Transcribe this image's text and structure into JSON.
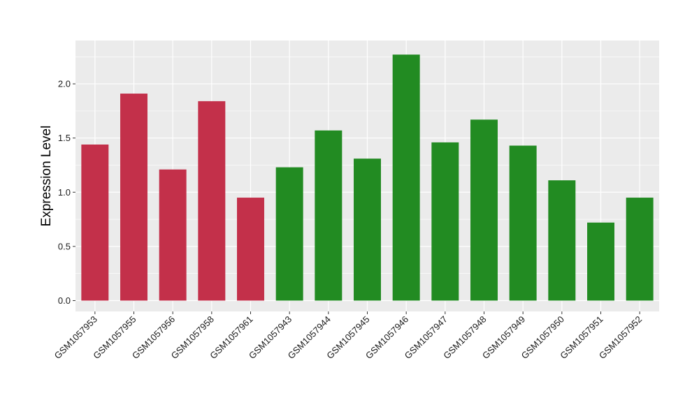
{
  "chart_data": {
    "type": "bar",
    "title": "",
    "xlabel": "",
    "ylabel": "Expression Level",
    "ylim": [
      -0.1,
      2.4
    ],
    "yticks": [
      "0.0",
      "0.5",
      "1.0",
      "1.5",
      "2.0"
    ],
    "grid": true,
    "legend": "none",
    "categories": [
      "GSM1057953",
      "GSM1057955",
      "GSM1057956",
      "GSM1057958",
      "GSM1057961",
      "GSM1057943",
      "GSM1057944",
      "GSM1057945",
      "GSM1057946",
      "GSM1057947",
      "GSM1057948",
      "GSM1057949",
      "GSM1057950",
      "GSM1057951",
      "GSM1057952"
    ],
    "values": [
      1.44,
      1.91,
      1.21,
      1.84,
      0.95,
      1.23,
      1.57,
      1.31,
      2.27,
      1.46,
      1.67,
      1.43,
      1.11,
      0.72,
      0.95
    ],
    "colors": [
      "#c3304a",
      "#c3304a",
      "#c3304a",
      "#c3304a",
      "#c3304a",
      "#228b22",
      "#228b22",
      "#228b22",
      "#228b22",
      "#228b22",
      "#228b22",
      "#228b22",
      "#228b22",
      "#228b22",
      "#228b22"
    ],
    "panel_background": "#ebebeb",
    "grid_color": "#ffffff"
  }
}
